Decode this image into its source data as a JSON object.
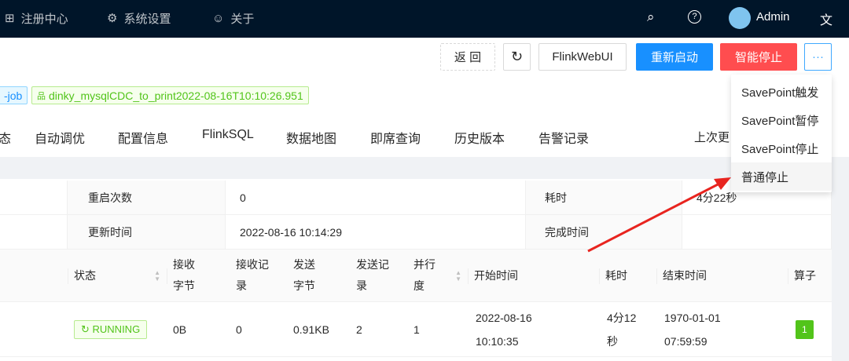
{
  "header": {
    "nav": [
      {
        "icon": "apps-icon",
        "label": "注册中心"
      },
      {
        "icon": "gear-icon",
        "label": "系统设置"
      },
      {
        "icon": "smile-icon",
        "label": "关于"
      }
    ],
    "user": "Admin"
  },
  "actions": {
    "back": "返 回",
    "refresh_icon": "reload-icon",
    "flink_web_ui": "FlinkWebUI",
    "restart": "重新启动",
    "smart_stop": "智能停止",
    "more": "···"
  },
  "tags": {
    "type": "-job",
    "name": "dinky_mysqlCDC_to_print2022-08-16T10:10:26.951"
  },
  "tabs": [
    "态",
    "自动调优",
    "配置信息",
    "FlinkSQL",
    "数据地图",
    "即席查询",
    "历史版本",
    "告警记录"
  ],
  "last_update_label": "上次更",
  "dropdown": [
    "SavePoint触发",
    "SavePoint暂停",
    "SavePoint停止",
    "普通停止"
  ],
  "info": [
    {
      "l1": "重启次数",
      "v1": "0",
      "l2": "耗时",
      "v2": "4分22秒"
    },
    {
      "l1": "更新时间",
      "v1": "2022-08-16 10:14:29",
      "l2": "完成时间",
      "v2": ""
    }
  ],
  "table": {
    "columns": [
      "状态",
      "接收字节",
      "接收记录",
      "发送字节",
      "发送记录",
      "并行度",
      "开始时间",
      "耗时",
      "结束时间",
      "算子"
    ],
    "row": {
      "status": "RUNNING",
      "recv_bytes": "0B",
      "recv_records": "0",
      "send_bytes": "0.91KB",
      "send_records": "2",
      "parallelism": "1",
      "start": "2022-08-16 10:10:35",
      "duration": "4分12秒",
      "end": "1970-01-01 07:59:59",
      "operators": "1"
    }
  },
  "colors": {
    "header": "#001529",
    "primary": "#1890ff",
    "danger": "#ff4d4f",
    "success": "#52c41a",
    "arrow": "#e8241f"
  }
}
